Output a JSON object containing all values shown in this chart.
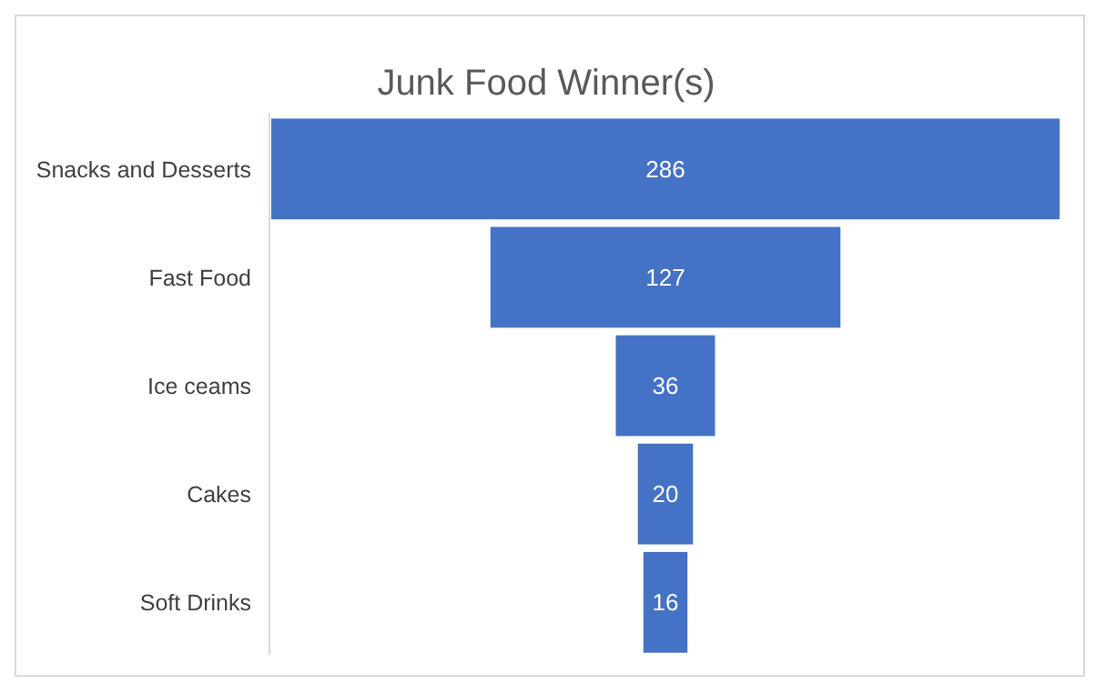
{
  "chart_data": {
    "type": "other",
    "title": "Junk Food Winner(s)",
    "categories": [
      "Snacks and Desserts",
      "Fast Food",
      "Ice ceams",
      "Cakes",
      "Soft Drinks"
    ],
    "values": [
      286,
      127,
      36,
      20,
      16
    ],
    "color": "#4472c4",
    "data_labels": true
  }
}
